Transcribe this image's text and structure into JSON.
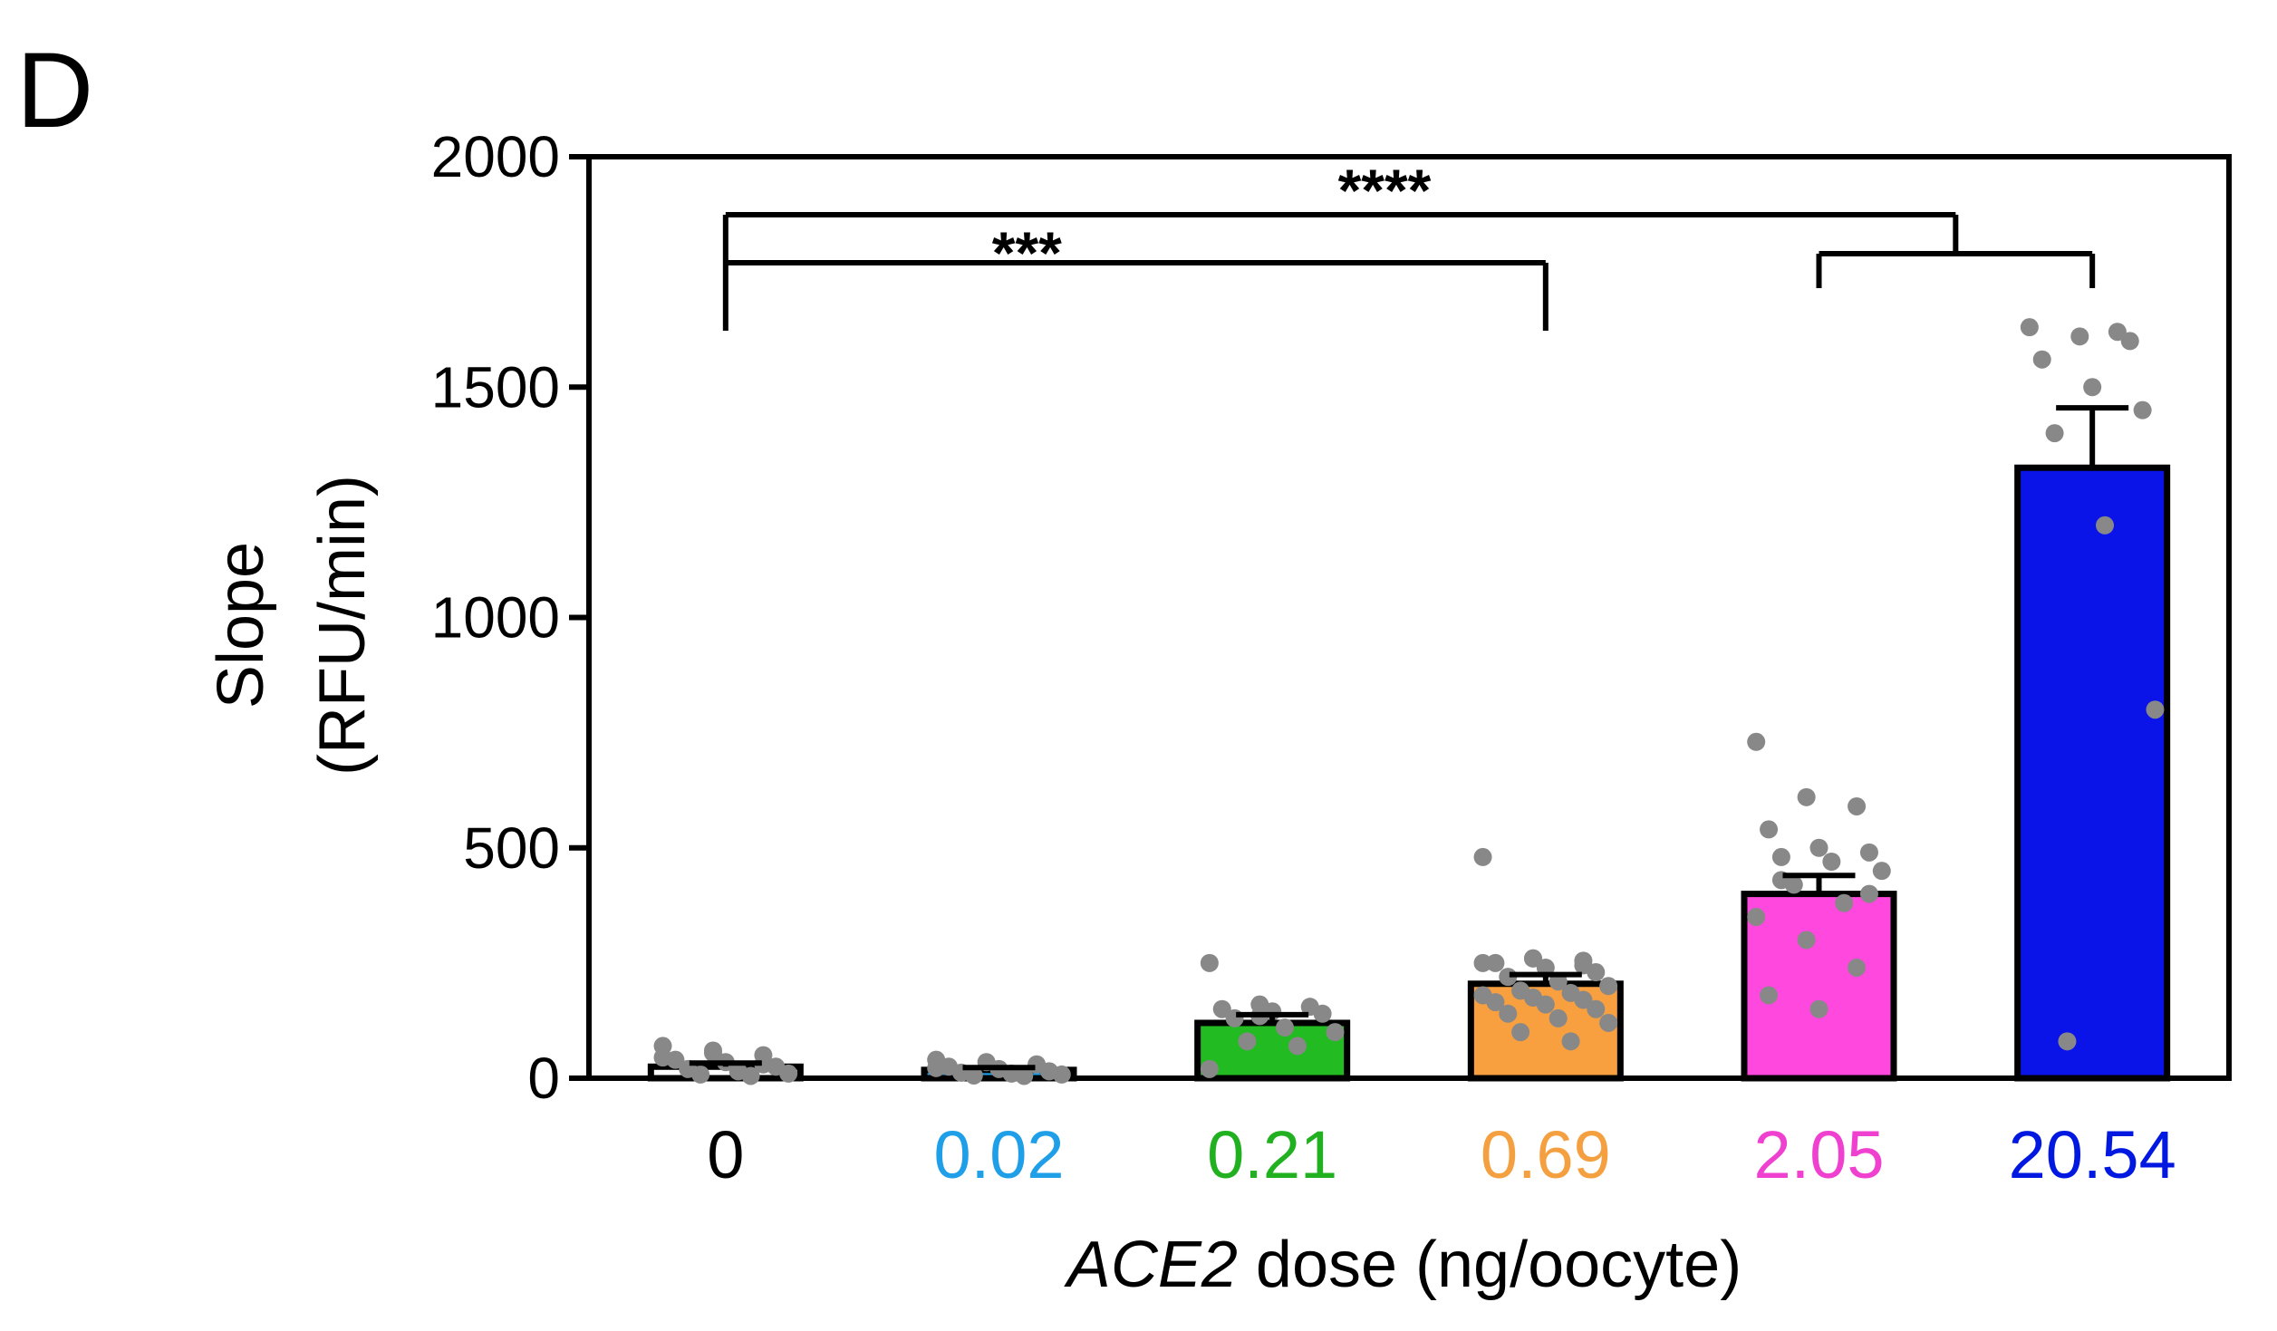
{
  "panel_label": "D",
  "chart_data": {
    "type": "bar",
    "title": "",
    "ylabel_line1": "Slope",
    "ylabel_line2": "(RFU/min)",
    "xlabel_italic": "ACE2",
    "xlabel_rest": " dose (ng/oocyte)",
    "ylim": [
      0,
      2000
    ],
    "yticks": [
      "0",
      "500",
      "1000",
      "1500",
      "2000"
    ],
    "ytick_values": [
      0,
      500,
      1000,
      1500,
      2000
    ],
    "categories": [
      "0",
      "0.02",
      "0.21",
      "0.69",
      "2.05",
      "20.54"
    ],
    "category_colors": [
      "#000000",
      "#1f9fe8",
      "#20b020",
      "#f5a040",
      "#f040d0",
      "#0018e0"
    ],
    "bar_colors": [
      "#ffffff",
      "#1f9fe8",
      "#22bb22",
      "#f8a040",
      "#ff48dd",
      "#0a14e8"
    ],
    "values": [
      25,
      18,
      120,
      205,
      400,
      1325
    ],
    "errors": [
      8,
      5,
      18,
      20,
      40,
      130
    ],
    "points": [
      [
        70,
        55,
        50,
        40,
        35,
        25,
        20,
        15,
        10,
        8,
        5,
        45,
        60,
        30
      ],
      [
        40,
        35,
        30,
        25,
        20,
        15,
        12,
        10,
        8,
        6,
        5,
        22
      ],
      [
        250,
        160,
        155,
        150,
        145,
        140,
        130,
        110,
        100,
        80,
        70,
        20,
        135
      ],
      [
        480,
        260,
        255,
        250,
        240,
        230,
        220,
        210,
        200,
        190,
        185,
        180,
        175,
        170,
        165,
        160,
        150,
        140,
        130,
        120,
        100,
        80,
        250,
        260,
        245
      ],
      [
        730,
        610,
        590,
        540,
        500,
        490,
        480,
        470,
        450,
        420,
        380,
        350,
        300,
        240,
        180,
        150,
        400,
        430
      ],
      [
        1630,
        1610,
        1600,
        1560,
        1500,
        1450,
        1400,
        1200,
        800,
        80,
        1620
      ]
    ],
    "point_color": "#888888",
    "significance": [
      {
        "label": "***",
        "from_index": 0,
        "to_index": 3
      },
      {
        "label": "****",
        "from_index": 0,
        "to_group": [
          4,
          5
        ]
      }
    ]
  }
}
